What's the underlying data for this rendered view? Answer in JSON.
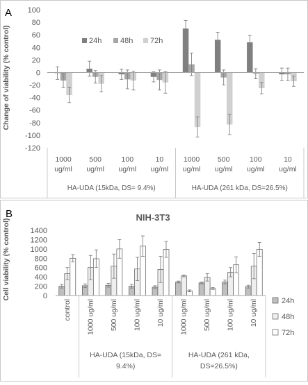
{
  "panels": [
    {
      "label": "A",
      "chart_data": {
        "type": "bar",
        "title": "",
        "xlabel": "",
        "ylabel": "Change of viability (% control)",
        "ylim": [
          -120,
          100
        ],
        "yticks": [
          -120,
          -100,
          -80,
          -60,
          -40,
          -20,
          0,
          20,
          40,
          60,
          80,
          100
        ],
        "grid": false,
        "legend_position": "top-left",
        "categories": [
          "1000 ug/ml",
          "500 ug/ml",
          "100 ug/ml",
          "10 ug/ml",
          "1000 ug/ml",
          "500 ug/ml",
          "100 ug/ml",
          "10 ug/ml"
        ],
        "groups": [
          {
            "label": "HA-UDA (15kDa, DS= 9.4%)",
            "span": [
              0,
              3
            ]
          },
          {
            "label": "HA-UDA (261 kDa, DS=26.5%)",
            "span": [
              4,
              7
            ]
          }
        ],
        "series": [
          {
            "name": "24h",
            "color": "#808080",
            "values": [
              -1,
              6,
              -3,
              -7,
              70,
              52,
              48,
              -3
            ],
            "errors": [
              10,
              12,
              8,
              8,
              13,
              12,
              11,
              10
            ]
          },
          {
            "name": "48h",
            "color": "#a6a6a6",
            "values": [
              -13,
              -7,
              -11,
              -12,
              13,
              -8,
              -2,
              -3
            ],
            "errors": [
              11,
              10,
              15,
              16,
              18,
              12,
              8,
              10
            ]
          },
          {
            "name": "72h",
            "color": "#d0d0d0",
            "values": [
              -36,
              -18,
              -13,
              -16,
              -87,
              -83,
              -25,
              -14
            ],
            "errors": [
              12,
              13,
              15,
              17,
              16,
              16,
              9,
              8
            ]
          }
        ]
      }
    },
    {
      "label": "B",
      "chart_data": {
        "type": "bar",
        "title": "NIH-3T3",
        "xlabel": "",
        "ylabel": "Cell viability (% control)",
        "ylim": [
          0,
          1400
        ],
        "yticks": [
          0,
          200,
          400,
          600,
          800,
          1000,
          1200,
          1400
        ],
        "grid": false,
        "legend_position": "right",
        "categories": [
          "control",
          "1000 ug/ml",
          "500 ug/ml",
          "100 ug/ml",
          "10 ug/ml",
          "1000 ug/ml",
          "500 ug/ml",
          "100 ug/ml",
          "10 ug/ml"
        ],
        "groups": [
          {
            "label": "HA-UDA (15kDa, DS= 9.4%)",
            "span": [
              1,
              4
            ]
          },
          {
            "label": "HA-UDA (261 kDa, DS=26.5%)",
            "span": [
              5,
              8
            ]
          }
        ],
        "series": [
          {
            "name": "24h",
            "color": "#bfbfbf",
            "values": [
              200,
              210,
              220,
              200,
              180,
              290,
              270,
              290,
              190
            ],
            "errors": [
              40,
              40,
              40,
              40,
              30,
              20,
              20,
              40,
              30
            ]
          },
          {
            "name": "48h",
            "color": "#eeeeee",
            "values": [
              470,
              600,
              630,
              570,
              560,
              420,
              390,
              500,
              630
            ],
            "errors": [
              130,
              260,
              260,
              250,
              280,
              20,
              80,
              100,
              270
            ]
          },
          {
            "name": "72h",
            "color": "#ffffff",
            "values": [
              800,
              790,
              1000,
              1060,
              990,
              100,
              150,
              660,
              990
            ],
            "errors": [
              80,
              190,
              200,
              220,
              170,
              20,
              20,
              170,
              150
            ]
          }
        ]
      }
    }
  ]
}
